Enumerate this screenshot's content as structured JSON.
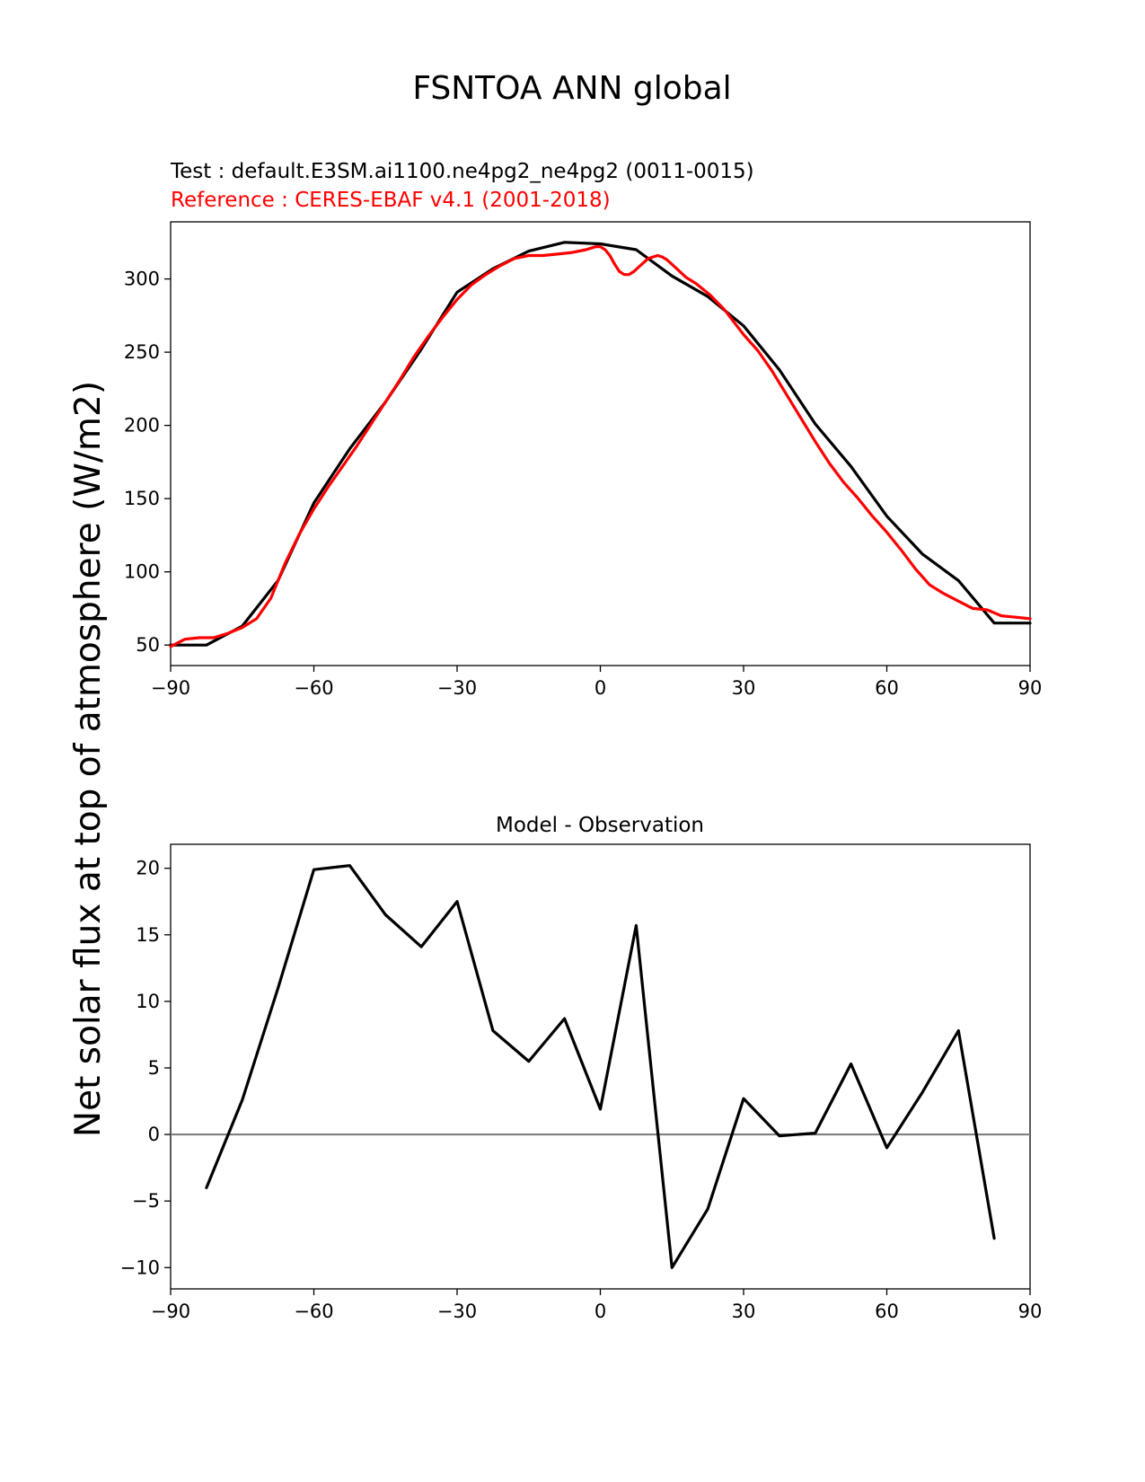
{
  "figure": {
    "title": "FSNTOA ANN global",
    "ylabel": "Net solar flux at top of atmosphere (W/m2)"
  },
  "chart_data": [
    {
      "type": "line",
      "test_label": "Test : default.E3SM.ai1100.ne4pg2_ne4pg2 (0011-0015)",
      "reference_label": "Reference : CERES-EBAF v4.1 (2001-2018)",
      "xlim": [
        -90,
        90
      ],
      "ylim": [
        36,
        339
      ],
      "xticks": [
        "−90",
        "−60",
        "−30",
        "0",
        "30",
        "60",
        "90"
      ],
      "xtick_values": [
        -90,
        -60,
        -30,
        0,
        30,
        60,
        90
      ],
      "yticks": [
        "50",
        "100",
        "150",
        "200",
        "250",
        "300"
      ],
      "ytick_values": [
        50,
        100,
        150,
        200,
        250,
        300
      ],
      "series": [
        {
          "color": "#000000",
          "x": [
            -90,
            -82.5,
            -75,
            -67.5,
            -60,
            -52.5,
            -45,
            -37.5,
            -30,
            -22.5,
            -15,
            -7.5,
            0,
            7.5,
            15,
            22.5,
            30,
            37.5,
            45,
            52.5,
            60,
            67.5,
            75,
            82.5,
            90
          ],
          "y": [
            50,
            50,
            63,
            94,
            147,
            184,
            216,
            252,
            291,
            307,
            319,
            325,
            324,
            320,
            302,
            288,
            268,
            238,
            201,
            172,
            138,
            112,
            94,
            65,
            65
          ]
        },
        {
          "color": "#ff0000",
          "x": [
            -90,
            -87,
            -84,
            -81,
            -78,
            -75,
            -72,
            -69,
            -66,
            -63,
            -60,
            -57,
            -54,
            -51,
            -48,
            -45,
            -42,
            -39,
            -36,
            -33,
            -30,
            -27,
            -24,
            -21,
            -18,
            -15,
            -12,
            -9,
            -6,
            -3,
            -1,
            0,
            1,
            2,
            3,
            4,
            5,
            6,
            7,
            8,
            9,
            10,
            11,
            12,
            13,
            14,
            15,
            16,
            18,
            20,
            23,
            26,
            30,
            33,
            36,
            39,
            42,
            45,
            48,
            51,
            54,
            57,
            60,
            63,
            66,
            69,
            72,
            75,
            78,
            81,
            84,
            87,
            90
          ],
          "y": [
            49,
            54,
            55,
            55,
            58,
            62,
            68,
            82,
            106,
            126,
            143,
            158,
            172,
            186,
            201,
            216,
            231,
            247,
            261,
            274,
            286,
            296,
            303,
            309,
            314,
            316,
            316,
            317,
            318,
            320,
            322,
            322,
            320,
            316,
            310,
            305,
            303,
            303,
            305,
            308,
            311,
            314,
            315,
            316,
            315,
            313,
            310,
            307,
            301,
            297,
            289,
            279,
            262,
            251,
            237,
            221,
            205,
            189,
            174,
            161,
            150,
            138,
            127,
            115,
            102,
            91,
            85,
            80,
            75,
            74,
            70,
            69,
            68
          ]
        }
      ]
    },
    {
      "type": "line",
      "title": "Model - Observation",
      "xlim": [
        -90,
        90
      ],
      "ylim": [
        -11.6,
        21.8
      ],
      "xticks": [
        "−90",
        "−60",
        "−30",
        "0",
        "30",
        "60",
        "90"
      ],
      "xtick_values": [
        -90,
        -60,
        -30,
        0,
        30,
        60,
        90
      ],
      "yticks": [
        "−10",
        "−5",
        "0",
        "5",
        "10",
        "15",
        "20"
      ],
      "ytick_values": [
        -10,
        -5,
        0,
        5,
        10,
        15,
        20
      ],
      "zero_line_color": "#808080",
      "series": [
        {
          "color": "#000000",
          "x": [
            -82.5,
            -75,
            -67.5,
            -60,
            -52.5,
            -45,
            -37.5,
            -30,
            -22.5,
            -15,
            -7.5,
            0,
            7.5,
            15,
            22.5,
            30,
            37.5,
            45,
            52.5,
            60,
            67.5,
            75,
            82.5
          ],
          "y": [
            -4,
            2.6,
            11,
            19.9,
            20.2,
            16.5,
            14.1,
            17.5,
            7.8,
            5.5,
            8.7,
            1.9,
            15.7,
            -10,
            -5.6,
            2.7,
            -0.1,
            0.1,
            5.3,
            -1,
            3.2,
            7.8,
            -7.8
          ]
        }
      ]
    }
  ]
}
